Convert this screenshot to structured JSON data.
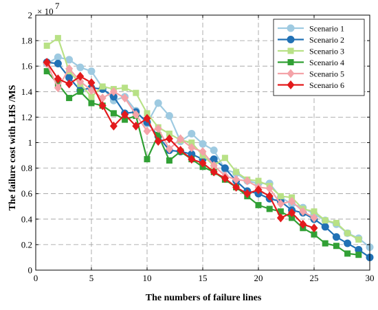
{
  "chart_data": {
    "type": "line",
    "xlabel": "The numbers of failure lines",
    "ylabel": "The failure cost with LHS /MS",
    "y_multiplier": "× 10",
    "y_exponent": "7",
    "xlim": [
      0,
      30
    ],
    "ylim": [
      0,
      2
    ],
    "xticks": [
      "0",
      "5",
      "10",
      "15",
      "20",
      "25",
      "30"
    ],
    "yticks": [
      "0",
      "0.2",
      "0.4",
      "0.6",
      "0.8",
      "1",
      "1.2",
      "1.4",
      "1.6",
      "1.8",
      "2"
    ],
    "grid": true,
    "legend_position": "top-right",
    "series": [
      {
        "name": "Scenario 1",
        "color": "#9ecae1",
        "marker": "circle",
        "x": [
          1,
          2,
          3,
          4,
          5,
          6,
          7,
          8,
          9,
          10,
          11,
          12,
          13,
          14,
          15,
          16,
          17,
          18,
          19,
          20,
          21,
          22,
          23,
          24,
          25,
          26,
          27,
          28,
          29,
          30
        ],
        "values": [
          1.62,
          1.67,
          1.65,
          1.59,
          1.56,
          1.43,
          1.33,
          1.36,
          1.25,
          1.15,
          1.31,
          1.21,
          1.01,
          1.07,
          0.99,
          0.94,
          0.79,
          0.76,
          0.7,
          0.68,
          0.68,
          0.57,
          0.52,
          0.49,
          0.44,
          0.39,
          0.36,
          0.29,
          0.25,
          0.18
        ]
      },
      {
        "name": "Scenario 2",
        "color": "#2171b5",
        "marker": "circle",
        "x": [
          1,
          2,
          3,
          4,
          5,
          6,
          7,
          8,
          9,
          10,
          11,
          12,
          13,
          14,
          15,
          16,
          17,
          18,
          19,
          20,
          21,
          22,
          23,
          24,
          25,
          26,
          27,
          28,
          29,
          30
        ],
        "values": [
          1.63,
          1.62,
          1.51,
          1.41,
          1.43,
          1.42,
          1.36,
          1.23,
          1.24,
          1.16,
          1.05,
          0.94,
          0.93,
          0.91,
          0.87,
          0.87,
          0.8,
          0.7,
          0.62,
          0.6,
          0.56,
          0.54,
          0.47,
          0.45,
          0.4,
          0.34,
          0.26,
          0.21,
          0.16,
          0.1
        ]
      },
      {
        "name": "Scenario 3",
        "color": "#b8e186",
        "marker": "square",
        "x": [
          1,
          2,
          3,
          4,
          5,
          6,
          7,
          8,
          9,
          10,
          11,
          12,
          13,
          14,
          15,
          16,
          17,
          18,
          19,
          20,
          21,
          22,
          23,
          24,
          25,
          26,
          27,
          28,
          29
        ],
        "values": [
          1.76,
          1.82,
          1.56,
          1.46,
          1.36,
          1.44,
          1.42,
          1.43,
          1.39,
          1.23,
          1.12,
          1.07,
          1.02,
          1.0,
          0.9,
          0.82,
          0.88,
          0.77,
          0.71,
          0.7,
          0.66,
          0.58,
          0.57,
          0.48,
          0.46,
          0.39,
          0.37,
          0.29,
          0.24
        ]
      },
      {
        "name": "Scenario 4",
        "color": "#31a035",
        "marker": "square",
        "x": [
          1,
          2,
          3,
          4,
          5,
          6,
          7,
          8,
          9,
          10,
          11,
          12,
          13,
          14,
          15,
          16,
          17,
          18,
          19,
          20,
          21,
          22,
          23,
          24,
          25,
          26,
          27,
          28,
          29
        ],
        "values": [
          1.56,
          1.46,
          1.35,
          1.4,
          1.31,
          1.29,
          1.23,
          1.18,
          1.21,
          0.87,
          1.06,
          0.86,
          0.93,
          0.87,
          0.81,
          0.77,
          0.71,
          0.65,
          0.58,
          0.51,
          0.48,
          0.46,
          0.41,
          0.33,
          0.28,
          0.21,
          0.19,
          0.13,
          0.12
        ]
      },
      {
        "name": "Scenario 5",
        "color": "#f4a3a8",
        "marker": "diamond",
        "x": [
          1,
          2,
          3,
          4,
          5,
          6,
          7,
          8,
          9,
          10,
          11,
          12,
          13,
          14,
          15,
          16,
          17,
          18,
          19,
          20,
          21,
          22,
          23,
          24,
          25
        ],
        "values": [
          1.62,
          1.43,
          1.58,
          1.48,
          1.41,
          1.35,
          1.4,
          1.35,
          1.22,
          1.09,
          1.11,
          0.95,
          1.03,
          0.96,
          0.93,
          0.82,
          0.74,
          0.71,
          0.7,
          0.65,
          0.64,
          0.52,
          0.54,
          0.46,
          0.41
        ]
      },
      {
        "name": "Scenario 6",
        "color": "#e31a1c",
        "marker": "diamond",
        "x": [
          1,
          2,
          3,
          4,
          5,
          6,
          7,
          8,
          9,
          10,
          11,
          12,
          13,
          14,
          15,
          16,
          17,
          18,
          19,
          20,
          21,
          22,
          23,
          24,
          25
        ],
        "values": [
          1.63,
          1.5,
          1.46,
          1.52,
          1.47,
          1.29,
          1.13,
          1.22,
          1.13,
          1.19,
          1.01,
          1.03,
          0.94,
          0.87,
          0.84,
          0.77,
          0.72,
          0.65,
          0.6,
          0.63,
          0.58,
          0.41,
          0.45,
          0.36,
          0.33
        ]
      }
    ]
  }
}
